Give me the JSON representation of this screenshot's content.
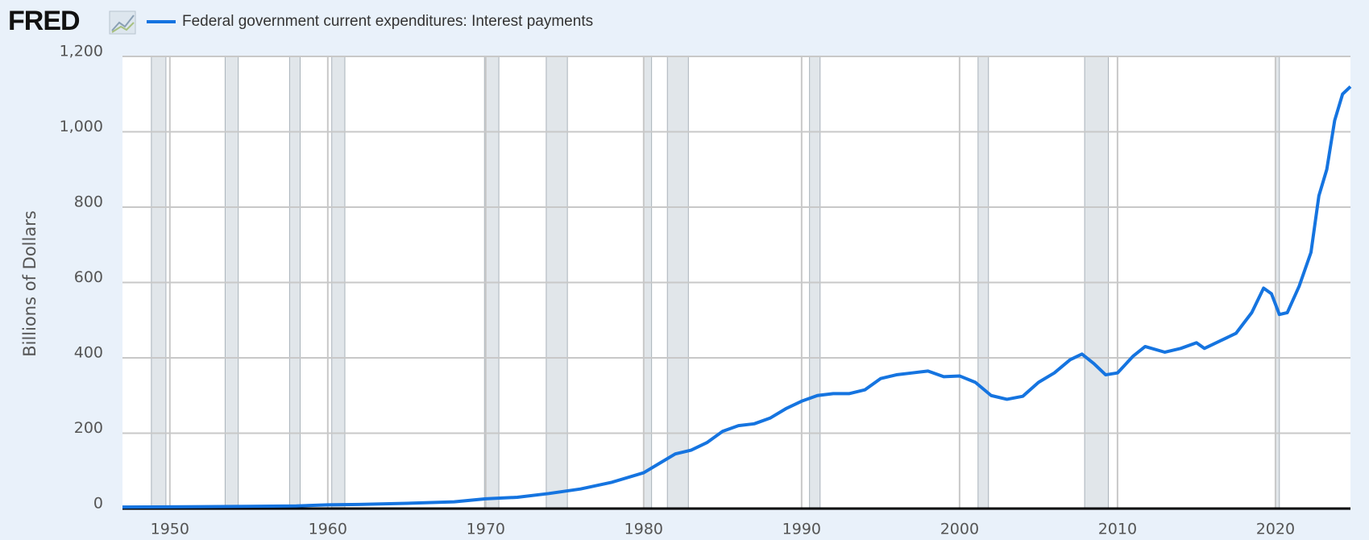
{
  "logo": "FRED",
  "chart_data": {
    "type": "line",
    "ylabel": "Billions of Dollars",
    "x": [
      1947,
      1950,
      1955,
      1958,
      1960,
      1962,
      1965,
      1968,
      1970,
      1972,
      1974,
      1976,
      1978,
      1980,
      1981,
      1982,
      1983,
      1984,
      1985,
      1986,
      1987,
      1988,
      1989,
      1990,
      1991,
      1992,
      1993,
      1994,
      1995,
      1996,
      1997,
      1998,
      1999,
      2000,
      2001,
      2002,
      2003,
      2004,
      2005,
      2006,
      2007,
      2007.75,
      2008.5,
      2009.25,
      2010,
      2011,
      2011.75,
      2013,
      2014,
      2015,
      2015.5,
      2016.5,
      2017.5,
      2018.5,
      2019.25,
      2019.75,
      2020.25,
      2020.75,
      2021.5,
      2022.25,
      2022.75,
      2023.25,
      2023.75,
      2024.25,
      2024.75
    ],
    "series": [
      {
        "name": "Federal government current expenditures: Interest payments",
        "color": "#1574e0",
        "values": [
          4,
          4.5,
          6,
          7,
          10,
          11,
          14,
          18,
          26,
          30,
          40,
          52,
          70,
          95,
          120,
          145,
          155,
          175,
          205,
          220,
          225,
          240,
          265,
          285,
          300,
          305,
          305,
          315,
          345,
          355,
          360,
          365,
          350,
          352,
          335,
          300,
          290,
          298,
          335,
          360,
          395,
          410,
          385,
          355,
          360,
          405,
          430,
          415,
          425,
          440,
          425,
          445,
          465,
          520,
          585,
          570,
          515,
          520,
          590,
          680,
          830,
          900,
          1030,
          1100,
          1120
        ]
      }
    ],
    "recessions": [
      [
        1948.83,
        1949.75
      ],
      [
        1953.5,
        1954.33
      ],
      [
        1957.58,
        1958.25
      ],
      [
        1960.25,
        1961.08
      ],
      [
        1969.92,
        1970.83
      ],
      [
        1973.83,
        1975.17
      ],
      [
        1980.0,
        1980.5
      ],
      [
        1981.5,
        1982.83
      ],
      [
        1990.5,
        1991.17
      ],
      [
        2001.17,
        2001.83
      ],
      [
        2007.92,
        2009.42
      ],
      [
        2020.0,
        2020.25
      ]
    ],
    "xlim": [
      1947,
      2024.75
    ],
    "ylim": [
      0,
      1200
    ],
    "xticks": [
      1950,
      1960,
      1970,
      1980,
      1990,
      2000,
      2010,
      2020
    ],
    "yticks": [
      0,
      200,
      400,
      600,
      800,
      {
        "value": 1000,
        "label": "1,000"
      },
      {
        "value": 1200,
        "label": "1,200"
      }
    ],
    "grid": true
  }
}
